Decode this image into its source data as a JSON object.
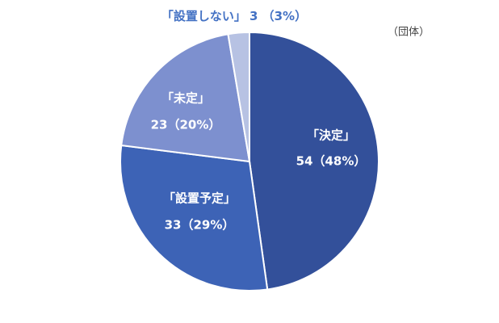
{
  "chart_data": {
    "type": "pie",
    "unit": "（団体）",
    "categories": [
      "「決定」",
      "「設置予定」",
      "「未定」",
      "「設置しない」"
    ],
    "values": [
      54,
      33,
      23,
      3
    ],
    "value_labels": [
      "54（48%）",
      "33（29%）",
      "23（20%）",
      "3 （3%）"
    ],
    "colors": [
      "#33509a",
      "#3d63b6",
      "#7d90cf",
      "#b7c2e3"
    ]
  }
}
